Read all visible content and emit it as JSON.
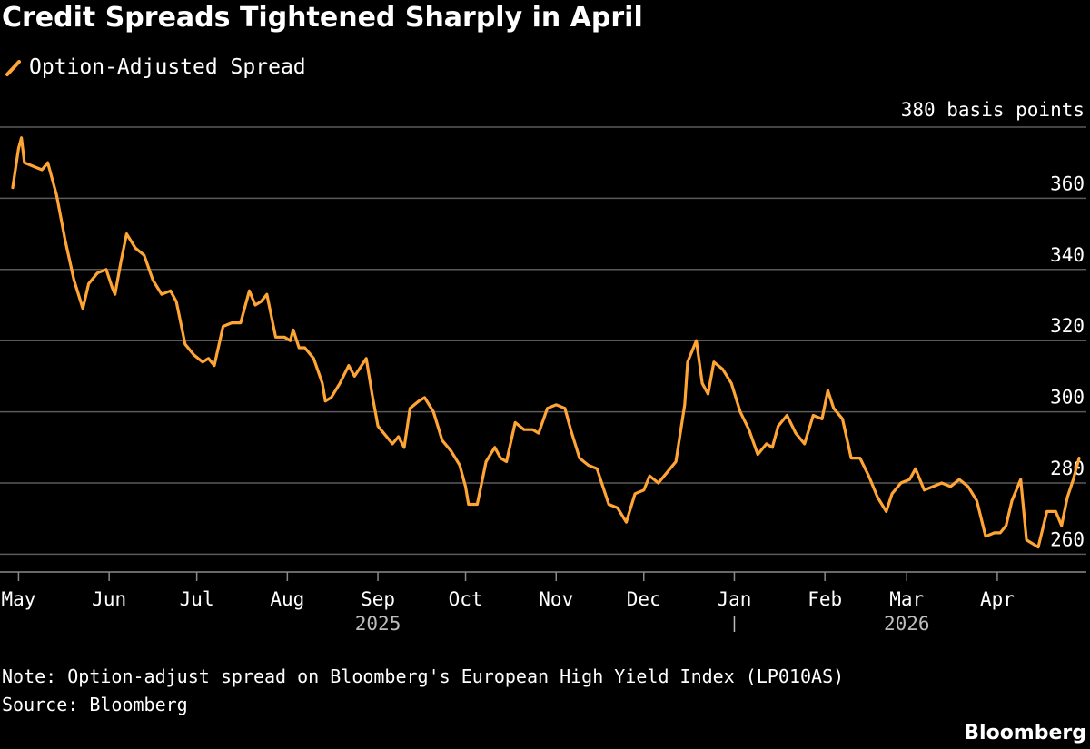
{
  "colors": {
    "line": "#FFA535",
    "grid": "#5a5a5a",
    "axis": "#8a8a8a",
    "text": "#ffffff",
    "background": "#000000"
  },
  "chart_data": {
    "type": "line",
    "title": "Credit Spreads Tightened Sharply in April",
    "unit_label": "380 basis points",
    "ylim": [
      255,
      380
    ],
    "y_ticks": [
      260,
      280,
      300,
      320,
      340,
      360
    ],
    "grid": true,
    "legend_position": "top-left",
    "xlim": [
      "2025-04-29",
      "2026-04-29"
    ],
    "x_ticks": [
      {
        "date": "2025-05-01",
        "label": "May"
      },
      {
        "date": "2025-06-01",
        "label": "Jun"
      },
      {
        "date": "2025-07-01",
        "label": "Jul"
      },
      {
        "date": "2025-08-01",
        "label": "Aug"
      },
      {
        "date": "2025-09-01",
        "label": "Sep"
      },
      {
        "date": "2025-10-01",
        "label": "Oct"
      },
      {
        "date": "2025-11-01",
        "label": "Nov"
      },
      {
        "date": "2025-12-01",
        "label": "Dec"
      },
      {
        "date": "2026-01-01",
        "label": "Jan"
      },
      {
        "date": "2026-02-01",
        "label": "Feb"
      },
      {
        "date": "2026-03-01",
        "label": "Mar"
      },
      {
        "date": "2026-04-01",
        "label": "Apr"
      }
    ],
    "year_labels": [
      {
        "date": "2025-09-01",
        "label": "2025"
      },
      {
        "date": "2026-03-01",
        "label": "2026"
      }
    ],
    "year_divider_date": "2026-01-01",
    "series": [
      {
        "name": "Option-Adjusted Spread",
        "points": [
          [
            "2025-04-29",
            363
          ],
          [
            "2025-05-01",
            374
          ],
          [
            "2025-05-02",
            377
          ],
          [
            "2025-05-03",
            370
          ],
          [
            "2025-05-06",
            369
          ],
          [
            "2025-05-09",
            368
          ],
          [
            "2025-05-11",
            370
          ],
          [
            "2025-05-14",
            361
          ],
          [
            "2025-05-17",
            348
          ],
          [
            "2025-05-20",
            337
          ],
          [
            "2025-05-23",
            329
          ],
          [
            "2025-05-25",
            336
          ],
          [
            "2025-05-28",
            339
          ],
          [
            "2025-05-31",
            340
          ],
          [
            "2025-06-02",
            335
          ],
          [
            "2025-06-03",
            333
          ],
          [
            "2025-06-05",
            342
          ],
          [
            "2025-06-07",
            350
          ],
          [
            "2025-06-10",
            346
          ],
          [
            "2025-06-13",
            344
          ],
          [
            "2025-06-16",
            337
          ],
          [
            "2025-06-19",
            333
          ],
          [
            "2025-06-22",
            334
          ],
          [
            "2025-06-24",
            331
          ],
          [
            "2025-06-27",
            319
          ],
          [
            "2025-06-30",
            316
          ],
          [
            "2025-07-03",
            314
          ],
          [
            "2025-07-05",
            315
          ],
          [
            "2025-07-07",
            313
          ],
          [
            "2025-07-10",
            324
          ],
          [
            "2025-07-13",
            325
          ],
          [
            "2025-07-16",
            325
          ],
          [
            "2025-07-19",
            334
          ],
          [
            "2025-07-21",
            330
          ],
          [
            "2025-07-23",
            331
          ],
          [
            "2025-07-25",
            333
          ],
          [
            "2025-07-28",
            321
          ],
          [
            "2025-07-31",
            321
          ],
          [
            "2025-08-02",
            320
          ],
          [
            "2025-08-03",
            323
          ],
          [
            "2025-08-05",
            318
          ],
          [
            "2025-08-07",
            318
          ],
          [
            "2025-08-10",
            315
          ],
          [
            "2025-08-13",
            308
          ],
          [
            "2025-08-14",
            303
          ],
          [
            "2025-08-16",
            304
          ],
          [
            "2025-08-19",
            308
          ],
          [
            "2025-08-22",
            313
          ],
          [
            "2025-08-24",
            310
          ],
          [
            "2025-08-28",
            315
          ],
          [
            "2025-08-30",
            305
          ],
          [
            "2025-09-01",
            296
          ],
          [
            "2025-09-04",
            293
          ],
          [
            "2025-09-06",
            291
          ],
          [
            "2025-09-08",
            293
          ],
          [
            "2025-09-10",
            290
          ],
          [
            "2025-09-12",
            301
          ],
          [
            "2025-09-15",
            303
          ],
          [
            "2025-09-17",
            304
          ],
          [
            "2025-09-20",
            300
          ],
          [
            "2025-09-23",
            292
          ],
          [
            "2025-09-26",
            289
          ],
          [
            "2025-09-29",
            285
          ],
          [
            "2025-10-01",
            279
          ],
          [
            "2025-10-02",
            274
          ],
          [
            "2025-10-05",
            274
          ],
          [
            "2025-10-08",
            286
          ],
          [
            "2025-10-11",
            290
          ],
          [
            "2025-10-13",
            287
          ],
          [
            "2025-10-15",
            286
          ],
          [
            "2025-10-18",
            297
          ],
          [
            "2025-10-21",
            295
          ],
          [
            "2025-10-24",
            295
          ],
          [
            "2025-10-26",
            294
          ],
          [
            "2025-10-29",
            301
          ],
          [
            "2025-11-01",
            302
          ],
          [
            "2025-11-04",
            301
          ],
          [
            "2025-11-06",
            295
          ],
          [
            "2025-11-09",
            287
          ],
          [
            "2025-11-12",
            285
          ],
          [
            "2025-11-15",
            284
          ],
          [
            "2025-11-17",
            279
          ],
          [
            "2025-11-19",
            274
          ],
          [
            "2025-11-22",
            273
          ],
          [
            "2025-11-25",
            269
          ],
          [
            "2025-11-28",
            277
          ],
          [
            "2025-12-01",
            278
          ],
          [
            "2025-12-03",
            282
          ],
          [
            "2025-12-06",
            280
          ],
          [
            "2025-12-09",
            283
          ],
          [
            "2025-12-12",
            286
          ],
          [
            "2025-12-15",
            302
          ],
          [
            "2025-12-16",
            314
          ],
          [
            "2025-12-19",
            320
          ],
          [
            "2025-12-21",
            308
          ],
          [
            "2025-12-23",
            305
          ],
          [
            "2025-12-25",
            314
          ],
          [
            "2025-12-28",
            312
          ],
          [
            "2025-12-31",
            308
          ],
          [
            "2026-01-03",
            300
          ],
          [
            "2026-01-06",
            295
          ],
          [
            "2026-01-09",
            288
          ],
          [
            "2026-01-12",
            291
          ],
          [
            "2026-01-14",
            290
          ],
          [
            "2026-01-16",
            296
          ],
          [
            "2026-01-19",
            299
          ],
          [
            "2026-01-22",
            294
          ],
          [
            "2026-01-25",
            291
          ],
          [
            "2026-01-28",
            299
          ],
          [
            "2026-01-31",
            298
          ],
          [
            "2026-02-02",
            306
          ],
          [
            "2026-02-04",
            301
          ],
          [
            "2026-02-07",
            298
          ],
          [
            "2026-02-10",
            287
          ],
          [
            "2026-02-13",
            287
          ],
          [
            "2026-02-16",
            282
          ],
          [
            "2026-02-19",
            276
          ],
          [
            "2026-02-22",
            272
          ],
          [
            "2026-02-24",
            277
          ],
          [
            "2026-02-27",
            280
          ],
          [
            "2026-03-02",
            281
          ],
          [
            "2026-03-04",
            284
          ],
          [
            "2026-03-07",
            278
          ],
          [
            "2026-03-10",
            279
          ],
          [
            "2026-03-13",
            280
          ],
          [
            "2026-03-16",
            279
          ],
          [
            "2026-03-19",
            281
          ],
          [
            "2026-03-22",
            279
          ],
          [
            "2026-03-25",
            275
          ],
          [
            "2026-03-28",
            265
          ],
          [
            "2026-03-31",
            266
          ],
          [
            "2026-04-02",
            266
          ],
          [
            "2026-04-04",
            268
          ],
          [
            "2026-04-06",
            275
          ],
          [
            "2026-04-09",
            281
          ],
          [
            "2026-04-11",
            264
          ],
          [
            "2026-04-13",
            263
          ],
          [
            "2026-04-15",
            262
          ],
          [
            "2026-04-18",
            272
          ],
          [
            "2026-04-21",
            272
          ],
          [
            "2026-04-23",
            268
          ],
          [
            "2026-04-25",
            276
          ],
          [
            "2026-04-27",
            281
          ],
          [
            "2026-04-29",
            287
          ]
        ]
      }
    ]
  },
  "legend": {
    "label": "Option-Adjusted Spread"
  },
  "footer": {
    "note": "Note: Option-adjust spread on Bloomberg's European High Yield Index (LP010AS)",
    "source": "Source: Bloomberg",
    "brand": "Bloomberg"
  }
}
